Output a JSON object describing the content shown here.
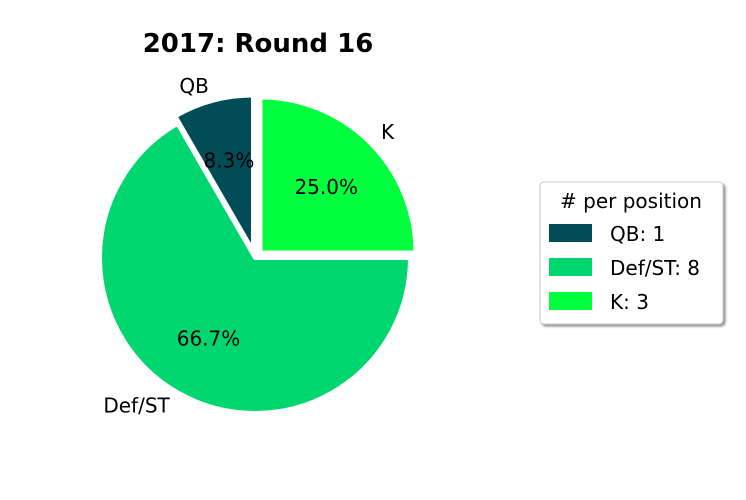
{
  "chart_data": {
    "type": "pie",
    "title": "2017: Round 16",
    "slices": [
      {
        "label": "QB",
        "value": 1,
        "percent_label": "8.3%",
        "color": "#004c57",
        "exploded": true
      },
      {
        "label": "Def/ST",
        "value": 8,
        "percent_label": "66.7%",
        "color": "#00d670",
        "exploded": false
      },
      {
        "label": "K",
        "value": 3,
        "percent_label": "25.0%",
        "color": "#00ff3c",
        "exploded": true
      }
    ],
    "legend": {
      "title": "# per position",
      "placement": "right",
      "entries": [
        "QB: 1",
        "Def/ST: 8",
        "K: 3"
      ]
    }
  }
}
